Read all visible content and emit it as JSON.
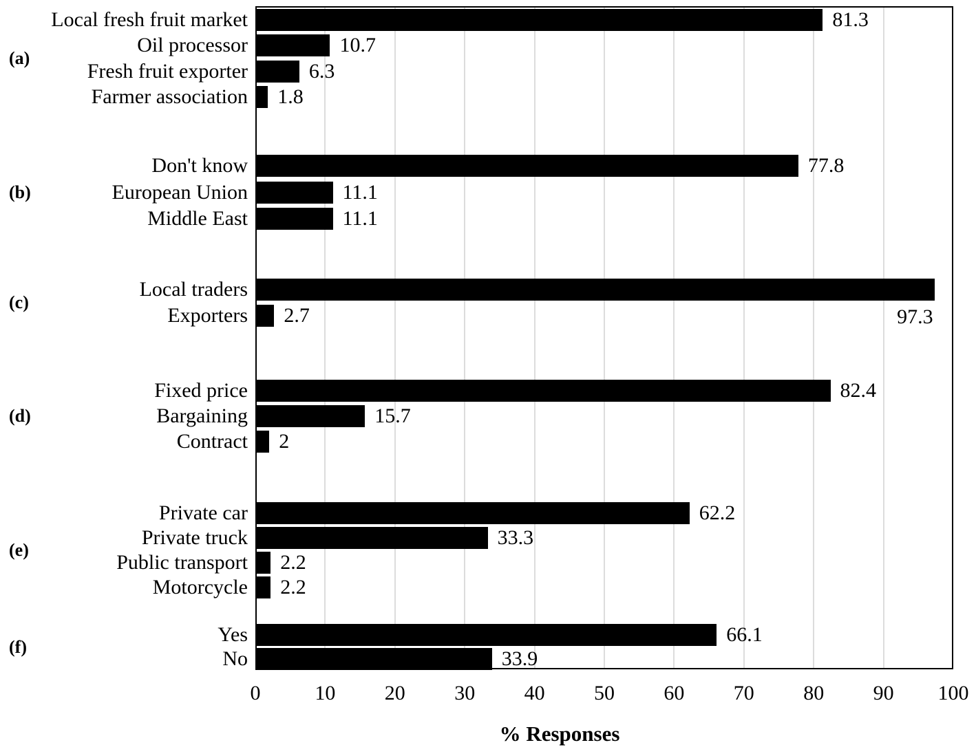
{
  "chart_data": {
    "type": "bar",
    "orientation": "horizontal",
    "title": "",
    "xlabel": "% Responses",
    "ylabel": "",
    "xlim": [
      0,
      100
    ],
    "xticks": [
      0,
      10,
      20,
      30,
      40,
      50,
      60,
      70,
      80,
      90,
      100
    ],
    "grid": "vertical",
    "bar_color": "#000000",
    "gridline_color": "#dcdcdc",
    "border_color": "#000000",
    "groups": [
      {
        "label": "(a)",
        "items": [
          {
            "category": "Local fresh fruit market",
            "value": 81.3,
            "value_label": "81.3"
          },
          {
            "category": "Oil processor",
            "value": 10.7,
            "value_label": "10.7"
          },
          {
            "category": "Fresh fruit exporter",
            "value": 6.3,
            "value_label": "6.3"
          },
          {
            "category": "Farmer association",
            "value": 1.8,
            "value_label": "1.8"
          }
        ]
      },
      {
        "label": "(b)",
        "items": [
          {
            "category": "Don't know",
            "value": 77.8,
            "value_label": "77.8"
          },
          {
            "category": "European Union",
            "value": 11.1,
            "value_label": "11.1"
          },
          {
            "category": "Middle East",
            "value": 11.1,
            "value_label": "11.1"
          }
        ]
      },
      {
        "label": "(c)",
        "items": [
          {
            "category": "Local traders",
            "value": 97.3,
            "value_label": "97.3",
            "label_position": "below-end"
          },
          {
            "category": "Exporters",
            "value": 2.7,
            "value_label": "2.7"
          }
        ]
      },
      {
        "label": "(d)",
        "items": [
          {
            "category": "Fixed price",
            "value": 82.4,
            "value_label": "82.4"
          },
          {
            "category": "Bargaining",
            "value": 15.7,
            "value_label": "15.7"
          },
          {
            "category": "Contract",
            "value": 2,
            "value_label": "2"
          }
        ]
      },
      {
        "label": "(e)",
        "items": [
          {
            "category": "Private car",
            "value": 62.2,
            "value_label": "62.2"
          },
          {
            "category": "Private truck",
            "value": 33.3,
            "value_label": "33.3"
          },
          {
            "category": "Public transport",
            "value": 2.2,
            "value_label": "2.2"
          },
          {
            "category": "Motorcycle",
            "value": 2.2,
            "value_label": "2.2"
          }
        ]
      },
      {
        "label": "(f)",
        "items": [
          {
            "category": "Yes",
            "value": 66.1,
            "value_label": "66.1"
          },
          {
            "category": "No",
            "value": 33.9,
            "value_label": "33.9"
          }
        ]
      }
    ]
  }
}
